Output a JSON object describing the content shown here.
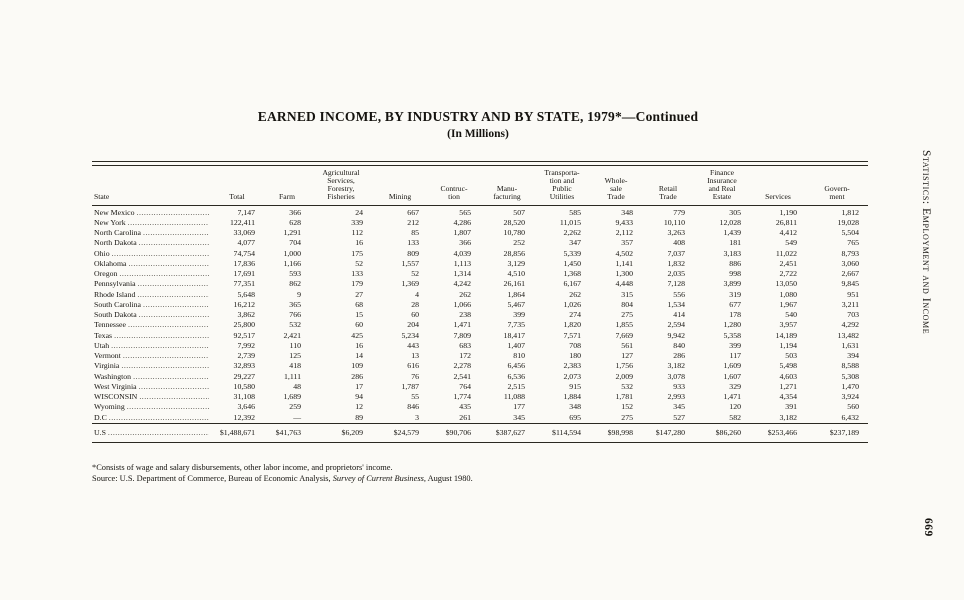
{
  "page": {
    "title": "EARNED INCOME, BY INDUSTRY AND BY STATE, 1979*—Continued",
    "subtitle": "(In Millions)",
    "side_label": "Statistics: Employment and Income",
    "page_number": "669",
    "footnote_1": "*Consists of wage and salary disbursements, other labor income, and proprietors' income.",
    "source_prefix": "Source: U.S. Department of Commerce, Bureau of Economic Analysis, ",
    "source_italic": "Survey of Current Business",
    "source_suffix": ", August 1980."
  },
  "table": {
    "columns": [
      {
        "lines": [
          "State"
        ]
      },
      {
        "lines": [
          "Total"
        ]
      },
      {
        "lines": [
          "Farm"
        ]
      },
      {
        "lines": [
          "Agricultural",
          "Services,",
          "Forestry,",
          "Fisheries"
        ]
      },
      {
        "lines": [
          "Mining"
        ]
      },
      {
        "lines": [
          "Contruc-",
          "tion"
        ]
      },
      {
        "lines": [
          "Manu-",
          "facturing"
        ]
      },
      {
        "lines": [
          "Transporta-",
          "tion and",
          "Public",
          "Utilities"
        ]
      },
      {
        "lines": [
          "Whole-",
          "sale",
          "Trade"
        ]
      },
      {
        "lines": [
          "Retail",
          "Trade"
        ]
      },
      {
        "lines": [
          "Finance",
          "Insurance",
          "and Real",
          "Estate"
        ]
      },
      {
        "lines": [
          "Services"
        ]
      },
      {
        "lines": [
          "Govern-",
          "ment"
        ]
      }
    ],
    "rows": [
      {
        "state": "New Mexico",
        "values": [
          "7,147",
          "366",
          "24",
          "667",
          "565",
          "507",
          "585",
          "348",
          "779",
          "305",
          "1,190",
          "1,812"
        ]
      },
      {
        "state": "New York",
        "values": [
          "122,411",
          "628",
          "339",
          "212",
          "4,286",
          "28,520",
          "11,015",
          "9,433",
          "10,110",
          "12,028",
          "26,811",
          "19,028"
        ]
      },
      {
        "state": "North Carolina",
        "values": [
          "33,069",
          "1,291",
          "112",
          "85",
          "1,807",
          "10,780",
          "2,262",
          "2,112",
          "3,263",
          "1,439",
          "4,412",
          "5,504"
        ]
      },
      {
        "state": "North Dakota",
        "values": [
          "4,077",
          "704",
          "16",
          "133",
          "366",
          "252",
          "347",
          "357",
          "408",
          "181",
          "549",
          "765"
        ]
      },
      {
        "state": "Ohio",
        "values": [
          "74,754",
          "1,000",
          "175",
          "809",
          "4,039",
          "28,856",
          "5,339",
          "4,502",
          "7,037",
          "3,183",
          "11,022",
          "8,793"
        ]
      },
      {
        "state": "Oklahoma",
        "values": [
          "17,836",
          "1,166",
          "52",
          "1,557",
          "1,113",
          "3,129",
          "1,450",
          "1,141",
          "1,832",
          "886",
          "2,451",
          "3,060"
        ]
      },
      {
        "state": "Oregon",
        "values": [
          "17,691",
          "593",
          "133",
          "52",
          "1,314",
          "4,510",
          "1,368",
          "1,300",
          "2,035",
          "998",
          "2,722",
          "2,667"
        ]
      },
      {
        "state": "Pennsylvania",
        "values": [
          "77,351",
          "862",
          "179",
          "1,369",
          "4,242",
          "26,161",
          "6,167",
          "4,448",
          "7,128",
          "3,899",
          "13,050",
          "9,845"
        ]
      },
      {
        "state": "Rhode Island",
        "values": [
          "5,648",
          "9",
          "27",
          "4",
          "262",
          "1,864",
          "262",
          "315",
          "556",
          "319",
          "1,080",
          "951"
        ]
      },
      {
        "state": "South Carolina",
        "values": [
          "16,212",
          "365",
          "68",
          "28",
          "1,066",
          "5,467",
          "1,026",
          "804",
          "1,534",
          "677",
          "1,967",
          "3,211"
        ]
      },
      {
        "state": "South Dakota",
        "values": [
          "3,862",
          "766",
          "15",
          "60",
          "238",
          "399",
          "274",
          "275",
          "414",
          "178",
          "540",
          "703"
        ]
      },
      {
        "state": "Tennessee",
        "values": [
          "25,800",
          "532",
          "60",
          "204",
          "1,471",
          "7,735",
          "1,820",
          "1,855",
          "2,594",
          "1,280",
          "3,957",
          "4,292"
        ]
      },
      {
        "state": "Texas",
        "values": [
          "92,517",
          "2,421",
          "425",
          "5,234",
          "7,809",
          "18,417",
          "7,571",
          "7,669",
          "9,942",
          "5,358",
          "14,189",
          "13,482"
        ]
      },
      {
        "state": "Utah",
        "values": [
          "7,992",
          "110",
          "16",
          "443",
          "683",
          "1,407",
          "708",
          "561",
          "840",
          "399",
          "1,194",
          "1,631"
        ]
      },
      {
        "state": "Vermont",
        "values": [
          "2,739",
          "125",
          "14",
          "13",
          "172",
          "810",
          "180",
          "127",
          "286",
          "117",
          "503",
          "394"
        ]
      },
      {
        "state": "Virginia",
        "values": [
          "32,893",
          "418",
          "109",
          "616",
          "2,278",
          "6,456",
          "2,383",
          "1,756",
          "3,182",
          "1,609",
          "5,498",
          "8,588"
        ]
      },
      {
        "state": "Washington",
        "values": [
          "29,227",
          "1,111",
          "286",
          "76",
          "2,541",
          "6,536",
          "2,073",
          "2,009",
          "3,078",
          "1,607",
          "4,603",
          "5,308"
        ]
      },
      {
        "state": "West Virginia",
        "values": [
          "10,580",
          "48",
          "17",
          "1,787",
          "764",
          "2,515",
          "915",
          "532",
          "933",
          "329",
          "1,271",
          "1,470"
        ]
      },
      {
        "state": "WISCONSIN",
        "values": [
          "31,108",
          "1,689",
          "94",
          "55",
          "1,774",
          "11,088",
          "1,884",
          "1,781",
          "2,993",
          "1,471",
          "4,354",
          "3,924"
        ]
      },
      {
        "state": "Wyoming",
        "values": [
          "3,646",
          "259",
          "12",
          "846",
          "435",
          "177",
          "348",
          "152",
          "345",
          "120",
          "391",
          "560"
        ]
      },
      {
        "state": "D.C",
        "values": [
          "12,392",
          "—",
          "89",
          "3",
          "261",
          "345",
          "695",
          "275",
          "527",
          "582",
          "3,182",
          "6,432"
        ]
      }
    ],
    "total_row": {
      "state": "U.S",
      "values": [
        "$1,488,671",
        "$41,763",
        "$6,209",
        "$24,579",
        "$90,706",
        "$387,627",
        "$114,594",
        "$98,998",
        "$147,280",
        "$86,260",
        "$253,466",
        "$237,189"
      ]
    }
  }
}
